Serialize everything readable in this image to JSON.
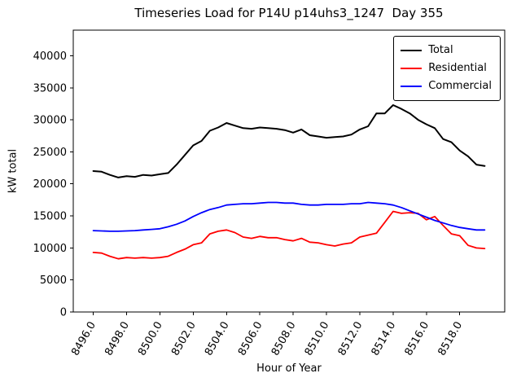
{
  "figure": {
    "title": "Timeseries Load for P14U p14uhs3_1247  Day 355"
  },
  "chart_data": {
    "type": "line",
    "title": "Timeseries Load for P14U p14uhs3_1247  Day 355",
    "xlabel": "Hour of Year",
    "ylabel": "kW total",
    "legend_position": "upper right",
    "grid": false,
    "xlim": [
      8494.8,
      8520.7
    ],
    "ylim": [
      0,
      44000
    ],
    "xticks": [
      8496,
      8498,
      8500,
      8502,
      8504,
      8506,
      8508,
      8510,
      8512,
      8514,
      8516,
      8518
    ],
    "xtick_labels": [
      "8496.0",
      "8498.0",
      "8500.0",
      "8502.0",
      "8504.0",
      "8506.0",
      "8508.0",
      "8510.0",
      "8512.0",
      "8514.0",
      "8516.0",
      "8518.0"
    ],
    "yticks": [
      0,
      5000,
      10000,
      15000,
      20000,
      25000,
      30000,
      35000,
      40000
    ],
    "x": [
      8496.0,
      8496.5,
      8497.0,
      8497.5,
      8498.0,
      8498.5,
      8499.0,
      8499.5,
      8500.0,
      8500.5,
      8501.0,
      8501.5,
      8502.0,
      8502.5,
      8503.0,
      8503.5,
      8504.0,
      8504.5,
      8505.0,
      8505.5,
      8506.0,
      8506.5,
      8507.0,
      8507.5,
      8508.0,
      8508.5,
      8509.0,
      8509.5,
      8510.0,
      8510.5,
      8511.0,
      8511.5,
      8512.0,
      8512.5,
      8513.0,
      8513.5,
      8514.0,
      8514.5,
      8515.0,
      8515.5,
      8516.0,
      8516.5,
      8517.0,
      8517.5,
      8518.0,
      8518.5,
      8519.0,
      8519.5
    ],
    "series": [
      {
        "name": "Total",
        "color": "#000000",
        "values": [
          22000,
          21900,
          21400,
          21000,
          21200,
          21100,
          21400,
          21300,
          21500,
          21700,
          23000,
          24500,
          26000,
          26700,
          28300,
          28800,
          29500,
          29100,
          28700,
          28600,
          28800,
          28700,
          28600,
          28400,
          28000,
          28500,
          27600,
          27400,
          27200,
          27300,
          27400,
          27700,
          28500,
          29000,
          31000,
          31000,
          32300,
          31700,
          31000,
          30000,
          29300,
          28700,
          27000,
          26500,
          25200,
          24300,
          23000,
          22800
        ]
      },
      {
        "name": "Residential",
        "color": "#ff0000",
        "values": [
          9300,
          9200,
          8700,
          8300,
          8500,
          8400,
          8500,
          8400,
          8500,
          8700,
          9300,
          9800,
          10500,
          10800,
          12200,
          12600,
          12800,
          12400,
          11700,
          11500,
          11800,
          11600,
          11600,
          11300,
          11100,
          11500,
          10900,
          10800,
          10500,
          10300,
          10600,
          10800,
          11700,
          12000,
          12300,
          14000,
          15700,
          15400,
          15500,
          15400,
          14400,
          14900,
          13500,
          12200,
          11900,
          10400,
          10000,
          9900
        ]
      },
      {
        "name": "Commercial",
        "color": "#0000ff",
        "values": [
          12700,
          12650,
          12600,
          12600,
          12650,
          12700,
          12800,
          12900,
          13000,
          13300,
          13700,
          14200,
          14900,
          15500,
          16000,
          16300,
          16700,
          16800,
          16900,
          16900,
          17000,
          17100,
          17100,
          17000,
          17000,
          16800,
          16700,
          16700,
          16800,
          16800,
          16800,
          16900,
          16900,
          17100,
          17000,
          16900,
          16700,
          16300,
          15800,
          15300,
          14800,
          14300,
          13900,
          13500,
          13200,
          13000,
          12800,
          12800
        ]
      }
    ]
  }
}
